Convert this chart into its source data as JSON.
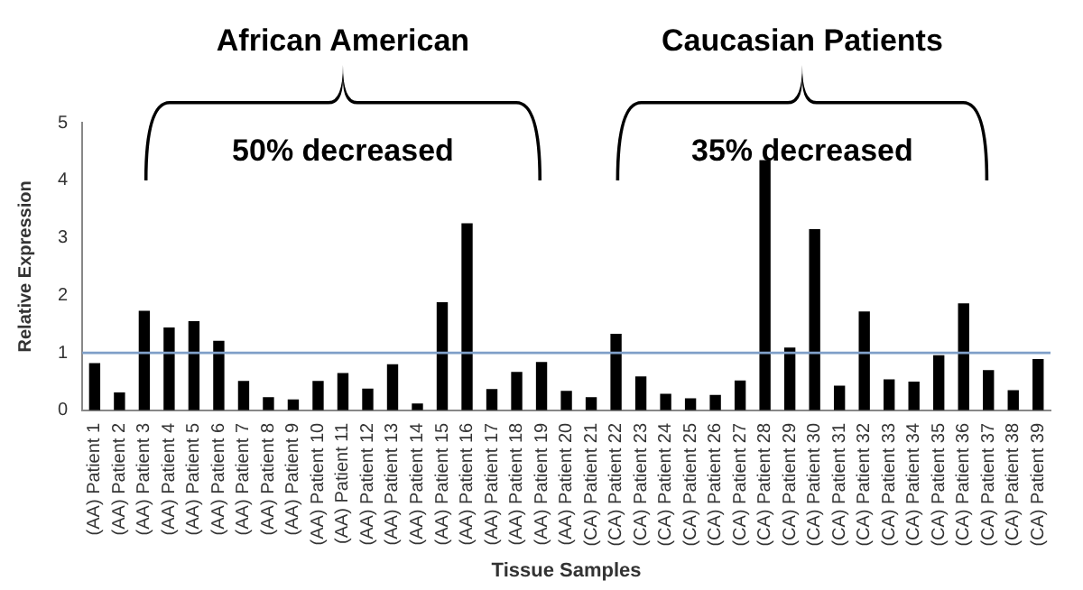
{
  "chart_data": {
    "type": "bar",
    "xlabel": "Tissue Samples",
    "ylabel": "Relative Expression",
    "categories": [
      "(AA) Patient 1",
      "(AA) Patient 2",
      "(AA) Patient 3",
      "(AA) Patient 4",
      "(AA) Patient 5",
      "(AA) Patient 6",
      "(AA) Patient 7",
      "(AA) Patient 8",
      "(AA) Patient 9",
      "(AA) Patient 10",
      "(AA) Patient 11",
      "(AA) Patient 12",
      "(AA) Patient 13",
      "(AA) Patient 14",
      "(AA) Patient 15",
      "(AA) Patient 16",
      "(AA) Patient 17",
      "(AA) Patient 18",
      "(AA) Patient 19",
      "(AA) Patient 20",
      "(CA) Patient 21",
      "(CA) Patient 22",
      "(CA) Patient 23",
      "(CA) Patient 24",
      "(CA) Patient 25",
      "(CA) Patient 26",
      "(CA) Patient 27",
      "(CA) Patient 28",
      "(CA) Patient 29",
      "(CA) Patient 30",
      "(CA) Patient 31",
      "(CA) Patient 32",
      "(CA) Patient 33",
      "(CA) Patient 34",
      "(CA) Patient 35",
      "(CA) Patient 36",
      "(CA) Patient 37",
      "(CA) Patient 38",
      "(CA) Patient 39"
    ],
    "values": [
      0.82,
      0.31,
      1.73,
      1.44,
      1.55,
      1.21,
      0.51,
      0.23,
      0.19,
      0.51,
      0.65,
      0.38,
      0.8,
      0.12,
      1.88,
      3.25,
      0.37,
      0.67,
      0.84,
      0.34,
      0.23,
      1.33,
      0.59,
      0.29,
      0.21,
      0.27,
      0.52,
      4.35,
      1.09,
      3.15,
      0.43,
      1.72,
      0.54,
      0.5,
      0.96,
      1.86,
      0.7,
      0.35,
      0.89
    ],
    "color": "#000000",
    "ylim": [
      0,
      5
    ],
    "yticks": [
      0,
      1,
      2,
      3,
      4,
      5
    ],
    "grid": false,
    "legend": false,
    "ref_lines": [
      {
        "axis": "y",
        "value": 1,
        "color": "#7f9fc8"
      }
    ],
    "annotations": [
      "African American",
      "50% decreased",
      "Caucasian Patients",
      "35% decreased"
    ]
  }
}
